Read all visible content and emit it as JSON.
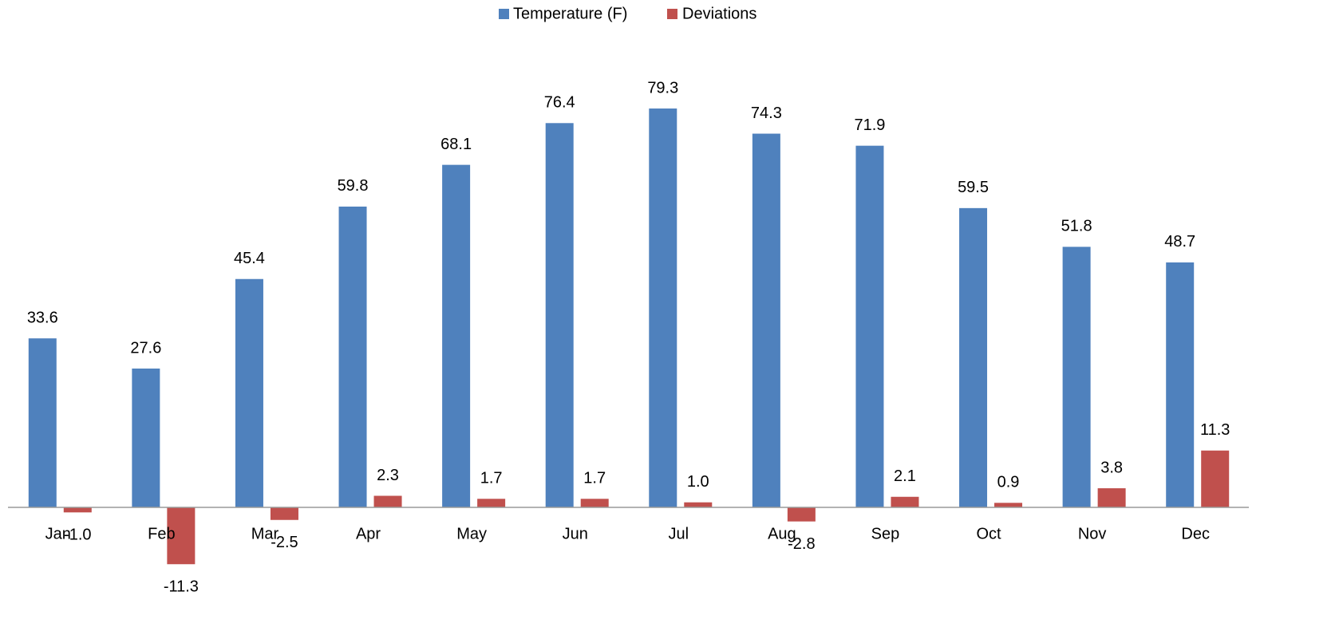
{
  "chart_data": {
    "type": "bar",
    "categories": [
      "Jan",
      "Feb",
      "Mar",
      "Apr",
      "May",
      "Jun",
      "Jul",
      "Aug",
      "Sep",
      "Oct",
      "Nov",
      "Dec"
    ],
    "series": [
      {
        "name": "Temperature (F)",
        "color": "#4f81bd",
        "values": [
          33.6,
          27.6,
          45.4,
          59.8,
          68.1,
          76.4,
          79.3,
          74.3,
          71.9,
          59.5,
          51.8,
          48.7
        ]
      },
      {
        "name": "Deviations",
        "color": "#c0504d",
        "values": [
          -1.0,
          -11.3,
          -2.5,
          2.3,
          1.7,
          1.7,
          1.0,
          -2.8,
          2.1,
          0.9,
          3.8,
          11.3
        ],
        "value_labels": [
          "-1.0",
          "-11.3",
          "-2.5",
          "2.3",
          "1.7",
          "1.7",
          "1.0",
          "-2.8",
          "2.1",
          "0.9",
          "3.8",
          "11.3"
        ]
      }
    ],
    "legend": "top"
  }
}
